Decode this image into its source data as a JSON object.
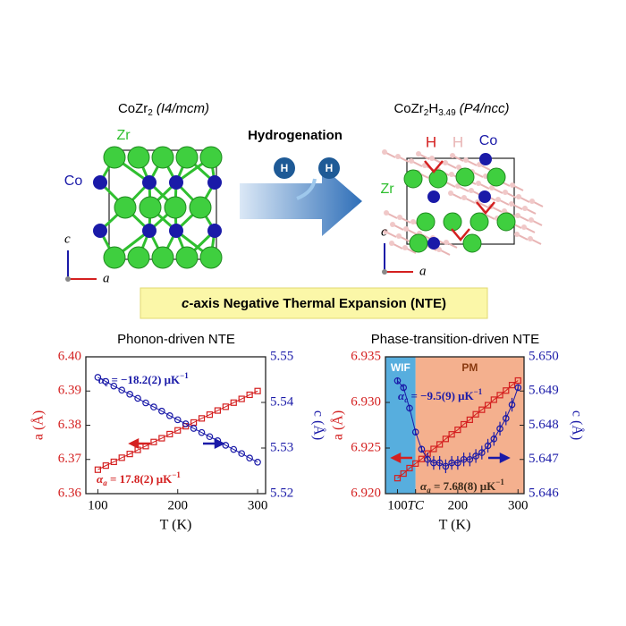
{
  "structures": {
    "left_title": {
      "formula": "CoZr",
      "sub": "2",
      "group": "(I4/mcm)"
    },
    "right_title": {
      "formula": "CoZr",
      "sub": "2",
      "h": "H",
      "hsub": "3.49",
      "group": "(P4/ncc)"
    },
    "process": "Hydrogenation",
    "h_atoms": [
      "H",
      "H"
    ],
    "left_labels": {
      "zr": "Zr",
      "co": "Co",
      "c": "c",
      "a": "a"
    },
    "right_labels": {
      "h1": "H",
      "h2": "H",
      "co": "Co",
      "zr": "Zr",
      "c": "c",
      "a": "a"
    }
  },
  "banner": {
    "italic": "c",
    "text": "-axis Negative Thermal Expansion (NTE)"
  },
  "chart_data": [
    {
      "type": "line",
      "title": "Phonon-driven NTE",
      "x_label": "T (K)",
      "y_label": "a (Å)",
      "y2_label": "c (Å)",
      "xlim": [
        85,
        310
      ],
      "xticks": [
        100,
        200,
        300
      ],
      "ylim": [
        6.36,
        6.4
      ],
      "yticks": [
        6.36,
        6.37,
        6.38,
        6.39,
        {
          "value": 6.4,
          "label": "6.40"
        }
      ],
      "y2lim": [
        5.52,
        5.55
      ],
      "y2ticks": [
        5.52,
        5.53,
        5.54,
        5.55
      ],
      "x": [
        100,
        110,
        120,
        130,
        140,
        150,
        160,
        170,
        180,
        190,
        200,
        210,
        220,
        230,
        240,
        250,
        260,
        270,
        280,
        290,
        300
      ],
      "series": [
        {
          "name": "a",
          "color": "#d42020",
          "values": [
            6.367,
            6.3682,
            6.3693,
            6.3705,
            6.3716,
            6.3728,
            6.3739,
            6.3751,
            6.3762,
            6.3774,
            6.3785,
            6.3797,
            6.3808,
            6.382,
            6.3831,
            6.3843,
            6.3854,
            6.3866,
            6.3877,
            6.3889,
            6.39
          ]
        },
        {
          "name": "c",
          "color": "#1a1aa8",
          "axis": "y2",
          "values": [
            5.5455,
            5.5446,
            5.5436,
            5.5427,
            5.5418,
            5.5409,
            5.5399,
            5.539,
            5.5381,
            5.5371,
            5.5362,
            5.5353,
            5.5343,
            5.5334,
            5.5325,
            5.5316,
            5.5306,
            5.5297,
            5.5288,
            5.5278,
            5.5269
          ]
        }
      ],
      "annotations": [
        {
          "symbol": "α",
          "sub": "c",
          "text": " = −18.2(2) μK",
          "sup": "−1",
          "color": "#1a1aa8"
        },
        {
          "symbol": "α",
          "sub": "a",
          "text": " = 17.8(2) μK",
          "sup": "−1",
          "color": "#d42020"
        }
      ]
    },
    {
      "type": "line",
      "title": "Phase-transition-driven NTE",
      "x_label": "T (K)",
      "y_label": "a (Å)",
      "y2_label": "c (Å)",
      "xlim": [
        80,
        310
      ],
      "xticks": [
        100,
        200,
        300
      ],
      "tc": 130,
      "tc_label": "TC",
      "regions": [
        {
          "label": "WIF",
          "color": "#3aa0d8"
        },
        {
          "label": "PM",
          "color": "#f2a27a"
        }
      ],
      "ylim": [
        6.92,
        6.935
      ],
      "yticks": [
        {
          "value": 6.92,
          "label": "6.920"
        },
        6.925,
        {
          "value": 6.93,
          "label": "6.930"
        },
        6.935
      ],
      "y2lim": [
        5.646,
        5.65
      ],
      "y2ticks": [
        5.646,
        5.647,
        5.648,
        5.649,
        {
          "value": 5.65,
          "label": "5.650"
        }
      ],
      "x": [
        100,
        110,
        120,
        130,
        140,
        150,
        160,
        170,
        180,
        190,
        200,
        210,
        220,
        230,
        240,
        250,
        260,
        270,
        280,
        290,
        300
      ],
      "series": [
        {
          "name": "a",
          "color": "#d42020",
          "values": [
            6.9217,
            6.9222,
            6.9228,
            6.9233,
            6.9238,
            6.9244,
            6.9249,
            6.9254,
            6.926,
            6.9265,
            6.927,
            6.9276,
            6.9281,
            6.9287,
            6.9292,
            6.9297,
            6.9303,
            6.9308,
            6.9313,
            6.9319,
            6.9324
          ]
        },
        {
          "name": "c",
          "color": "#1a1aa8",
          "axis": "y2",
          "values": [
            5.6493,
            5.6491,
            5.6485,
            5.6478,
            5.6473,
            5.647,
            5.6469,
            5.6469,
            5.6468,
            5.6469,
            5.6469,
            5.647,
            5.647,
            5.6471,
            5.6472,
            5.6474,
            5.6476,
            5.6479,
            5.6482,
            5.6486,
            5.6491
          ],
          "errors": [
            0.0001,
            0.0001,
            0.0001,
            0.0001,
            0.0001,
            0.0002,
            0.0002,
            0.0002,
            0.0002,
            0.0002,
            0.0002,
            0.0002,
            0.0002,
            0.0002,
            0.0002,
            0.0002,
            0.0002,
            0.0002,
            0.0002,
            0.0002,
            0.0001
          ]
        }
      ],
      "annotations": [
        {
          "symbol": "α",
          "sub": "c",
          "text": " = −9.5(9) μK",
          "sup": "−1",
          "color": "#1a1aa8"
        },
        {
          "symbol": "α",
          "sub": "a",
          "text": " = 7.68(8) μK",
          "sup": "−1",
          "color": "#3a2a1a"
        }
      ]
    }
  ]
}
